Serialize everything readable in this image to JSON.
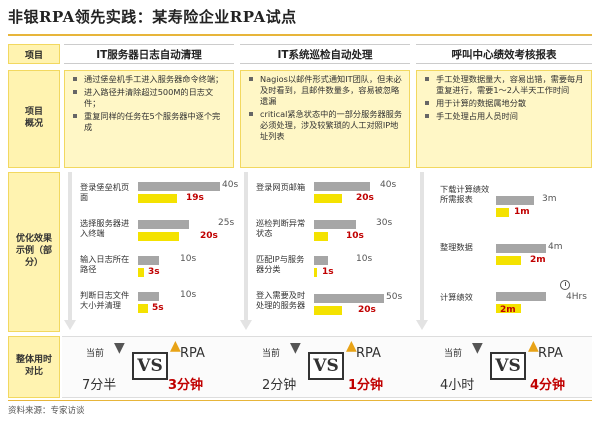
{
  "title": "非银RPA领先实践：某寿险企业RPA试点",
  "header": {
    "label": "项目",
    "columns": [
      "IT服务器日志自动清理",
      "IT系统巡检自动处理",
      "呼叫中心绩效考核报表"
    ]
  },
  "rows": {
    "overview_label": "项目概况",
    "optimization_label": "优化效果示例（部分）",
    "total_label": "整体用时对比"
  },
  "overview": [
    [
      "通过堡垒机手工进入服务器命令终端；",
      "进入路径并清除超过500M的日志文件；",
      "重复同样的任务在5个服务器中逐个完成"
    ],
    [
      "Nagios以邮件形式通知IT团队，但未必及时看到，且邮件数量多，容易被忽略遗漏",
      "critical紧急状态中的一部分服务器服务必须处理，涉及较繁琐的人工对照IP地址列表"
    ],
    [
      "手工处理数据量大，容易出错，需要每月重复进行，需要1～2人半天工作时间",
      "用于计算的数据属地分散",
      "手工处理占用人员时间"
    ]
  ],
  "steps": [
    [
      {
        "label": "登录堡垒机页面",
        "before": "40s",
        "after": "19s"
      },
      {
        "label": "选择服务器进入终端",
        "before": "25s",
        "after": "20s"
      },
      {
        "label": "输入日志所在路径",
        "before": "10s",
        "after": "3s"
      },
      {
        "label": "判断日志文件大小并清理",
        "before": "10s",
        "after": "5s"
      }
    ],
    [
      {
        "label": "登录网页邮箱",
        "before": "40s",
        "after": "20s"
      },
      {
        "label": "巡检判断异常状态",
        "before": "30s",
        "after": "10s"
      },
      {
        "label": "匹配IP与服务器分类",
        "before": "10s",
        "after": "1s"
      },
      {
        "label": "登入需要及时处理的服务器",
        "before": "50s",
        "after": "20s"
      }
    ],
    [
      {
        "label": "下载计算绩效所需报表",
        "before": "3m",
        "after": "1m"
      },
      {
        "label": "整理数据",
        "before": "4m",
        "after": "2m"
      },
      {
        "label": "计算绩效",
        "before": "4Hrs",
        "after": "2m"
      }
    ]
  ],
  "bar_levels": [
    [
      {
        "before": 40,
        "after": 19
      },
      {
        "before": 25,
        "after": 20
      },
      {
        "before": 10,
        "after": 3
      },
      {
        "before": 10,
        "after": 5
      }
    ],
    [
      {
        "before": 40,
        "after": 20
      },
      {
        "before": 30,
        "after": 10
      },
      {
        "before": 10,
        "after": 1
      },
      {
        "before": 50,
        "after": 20
      }
    ],
    [
      {
        "before": 3,
        "after": 1
      },
      {
        "before": 4,
        "after": 2
      },
      {
        "before": 240,
        "after": 2
      }
    ]
  ],
  "compare": {
    "current_label": "当前",
    "vs": "VS",
    "rpa_label": "RPA",
    "columns": [
      {
        "before": "7分半",
        "after": "3分钟"
      },
      {
        "before": "2分钟",
        "after": "1分钟"
      },
      {
        "before": "4小时",
        "after": "4分钟"
      }
    ]
  },
  "source": "资料来源：专家访谈",
  "colors": {
    "accent": "#e7b53a",
    "yellow_bar": "#f4e200",
    "grey_bar": "#a6a6a6",
    "red_text": "#c00000",
    "panel": "#fff7c6"
  }
}
